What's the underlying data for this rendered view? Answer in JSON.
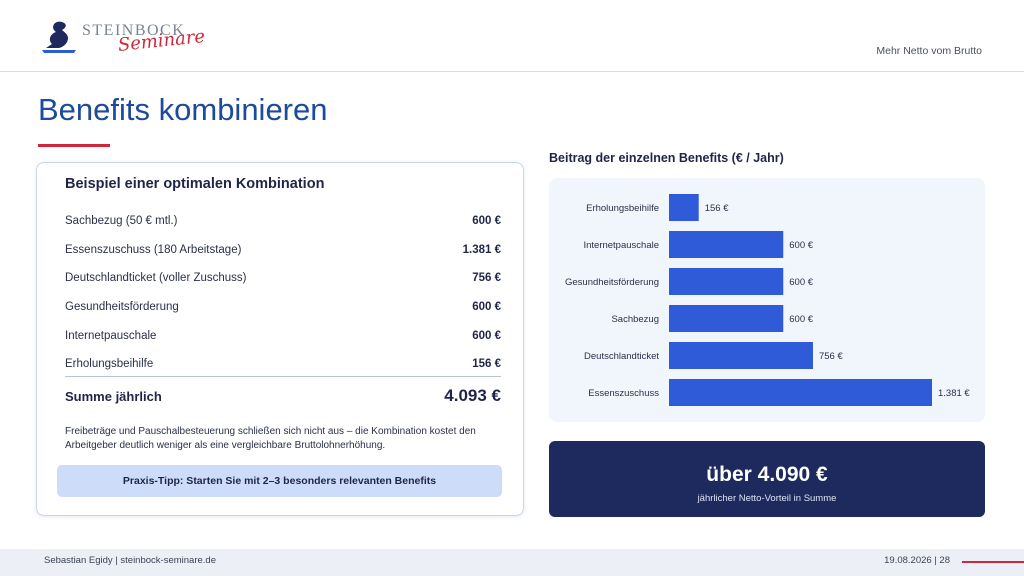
{
  "header": {
    "brand_main": "STEINBOCK",
    "brand_sub": "Seminare",
    "right_text": "Mehr Netto vom Brutto"
  },
  "title": "Benefits kombinieren",
  "card": {
    "title": "Beispiel einer optimalen Kombination",
    "items": [
      {
        "label": "Sachbezug (50 € mtl.)",
        "value": "600 €"
      },
      {
        "label": "Essenszuschuss (180 Arbeitstage)",
        "value": "1.381 €"
      },
      {
        "label": "Deutschlandticket (voller Zuschuss)",
        "value": "756 €"
      },
      {
        "label": "Gesundheitsförderung",
        "value": "600 €"
      },
      {
        "label": "Internetpauschale",
        "value": "600 €"
      },
      {
        "label": "Erholungsbeihilfe",
        "value": "156 €"
      }
    ],
    "sum_label": "Summe jährlich",
    "sum_value": "4.093 €",
    "note": "Freibeträge und Pauschalbesteuerung schließen sich nicht aus – die Kombination kostet den Arbeitgeber deutlich weniger als eine vergleichbare Bruttolohnerhöhung.",
    "tip": "Praxis-Tipp: Starten Sie mit 2–3 besonders relevanten Benefits"
  },
  "chart_data": {
    "type": "bar",
    "orientation": "horizontal",
    "title": "Beitrag der einzelnen Benefits (€ / Jahr)",
    "categories": [
      "Erholungsbeihilfe",
      "Internetpauschale",
      "Gesundheitsförderung",
      "Sachbezug",
      "Deutschlandticket",
      "Essenszuschuss"
    ],
    "values": [
      156,
      600,
      600,
      600,
      756,
      1381
    ],
    "value_labels": [
      "156 €",
      "600 €",
      "600 €",
      "600 €",
      "756 €",
      "1.381 €"
    ],
    "xlim": [
      0,
      1381
    ],
    "bar_color": "#2f5bd8",
    "grid": false
  },
  "total": {
    "big": "über 4.090 €",
    "small": "jährlicher Netto-Vorteil in Summe"
  },
  "footer": {
    "left": "Sebastian Egidy | steinbock-seminare.de",
    "right": "19.08.2026  |  28"
  },
  "colors": {
    "accent_red": "#d0283a",
    "title_blue": "#1d4a9a",
    "navy": "#1e2a5e"
  }
}
